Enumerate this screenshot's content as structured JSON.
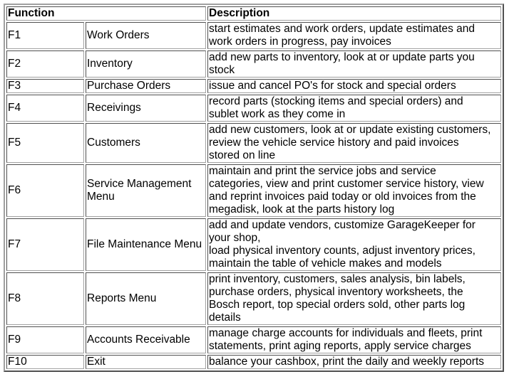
{
  "headers": {
    "function": "Function",
    "description": "Description"
  },
  "rows": [
    {
      "key": "F1",
      "name": "Work Orders",
      "desc": [
        "start estimates and work orders, update estimates and",
        "work orders in progress, pay invoices"
      ]
    },
    {
      "key": "F2",
      "name": "Inventory",
      "desc": [
        "add new parts to inventory, look at or update parts you",
        "stock"
      ]
    },
    {
      "key": "F3",
      "name": "Purchase Orders",
      "desc": [
        "issue and cancel PO's for stock and special orders"
      ]
    },
    {
      "key": "F4",
      "name": "Receivings",
      "desc": [
        "record parts (stocking items and special orders) and",
        "sublet work as they come in"
      ]
    },
    {
      "key": "F5",
      "name": "Customers",
      "desc": [
        "add new customers, look at or update existing customers,",
        "review the vehicle service history and paid invoices",
        "stored on line"
      ]
    },
    {
      "key": "F6",
      "name": [
        "Service Management",
        "Menu"
      ],
      "desc": [
        "maintain and print the service jobs and service",
        "categories, view and print customer service history, view",
        "and reprint invoices paid today or old invoices from the",
        "megadisk, look at the parts history log"
      ]
    },
    {
      "key": "F7",
      "name": "File Maintenance Menu",
      "desc": [
        "add and update vendors, customize GarageKeeper for",
        "your shop,",
        "load physical inventory counts, adjust inventory prices,",
        "maintain the table of vehicle makes and models"
      ]
    },
    {
      "key": "F8",
      "name": "Reports Menu",
      "desc": [
        "print inventory, customers, sales analysis, bin labels,",
        "purchase orders, physical inventory worksheets, the",
        "Bosch report, top special orders sold, other parts log",
        "details"
      ]
    },
    {
      "key": "F9",
      "name": "Accounts Receivable",
      "desc": [
        "manage charge accounts for individuals and fleets, print",
        "statements, print aging reports, apply service charges"
      ]
    },
    {
      "key": "F10",
      "name": "Exit",
      "desc": [
        "balance your cashbox, print the daily and weekly reports"
      ]
    }
  ]
}
